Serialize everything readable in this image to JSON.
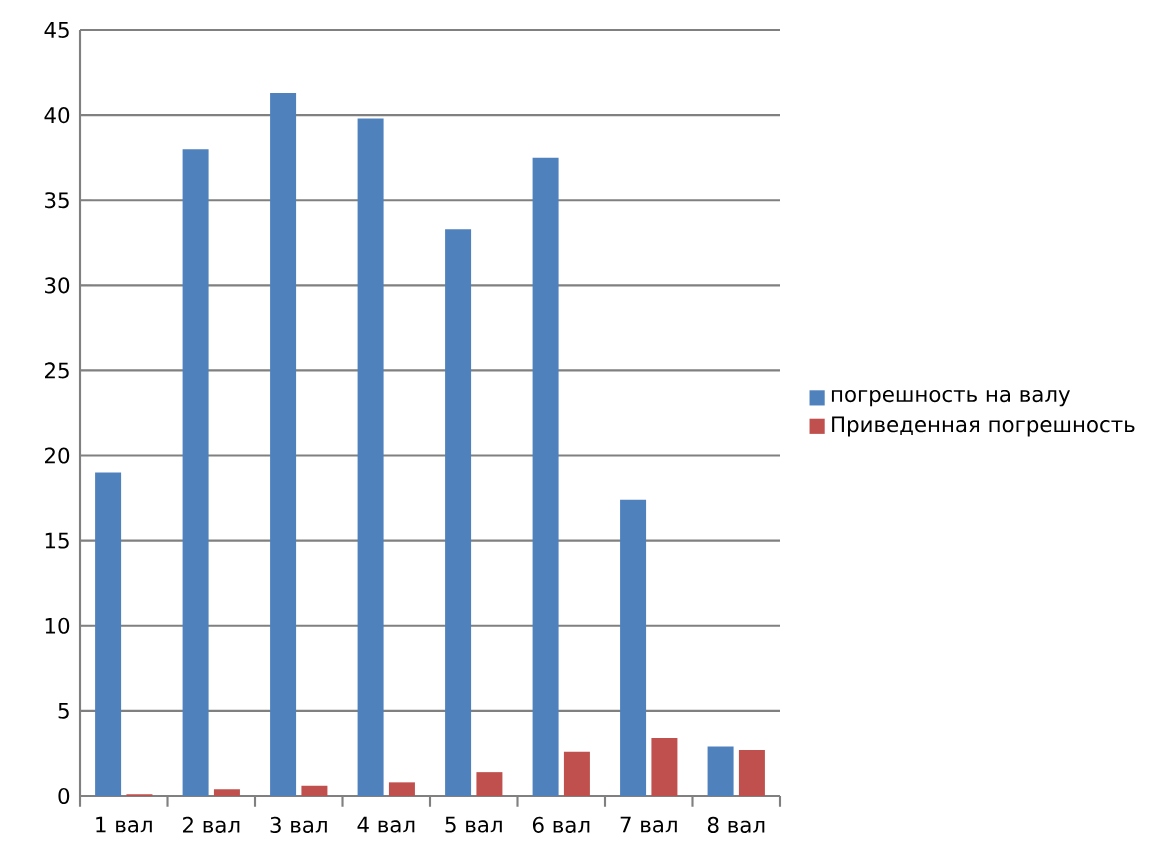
{
  "chart_data": {
    "type": "bar",
    "categories": [
      "1 вал",
      "2 вал",
      "3 вал",
      "4 вал",
      "5 вал",
      "6 вал",
      "7 вал",
      "8 вал"
    ],
    "series": [
      {
        "name": "погрешность на валу",
        "color": "#4f81bd",
        "values": [
          19.0,
          38.0,
          41.3,
          39.8,
          33.3,
          37.5,
          17.4,
          2.9
        ]
      },
      {
        "name": "Приведенная погрешность",
        "color": "#c0504d",
        "values": [
          0.1,
          0.4,
          0.6,
          0.8,
          1.4,
          2.6,
          3.4,
          2.7
        ]
      }
    ],
    "ylim": [
      0,
      45
    ],
    "yticks": [
      0,
      5,
      10,
      15,
      20,
      25,
      30,
      35,
      40,
      45
    ],
    "grid": "y",
    "legend": "right"
  }
}
